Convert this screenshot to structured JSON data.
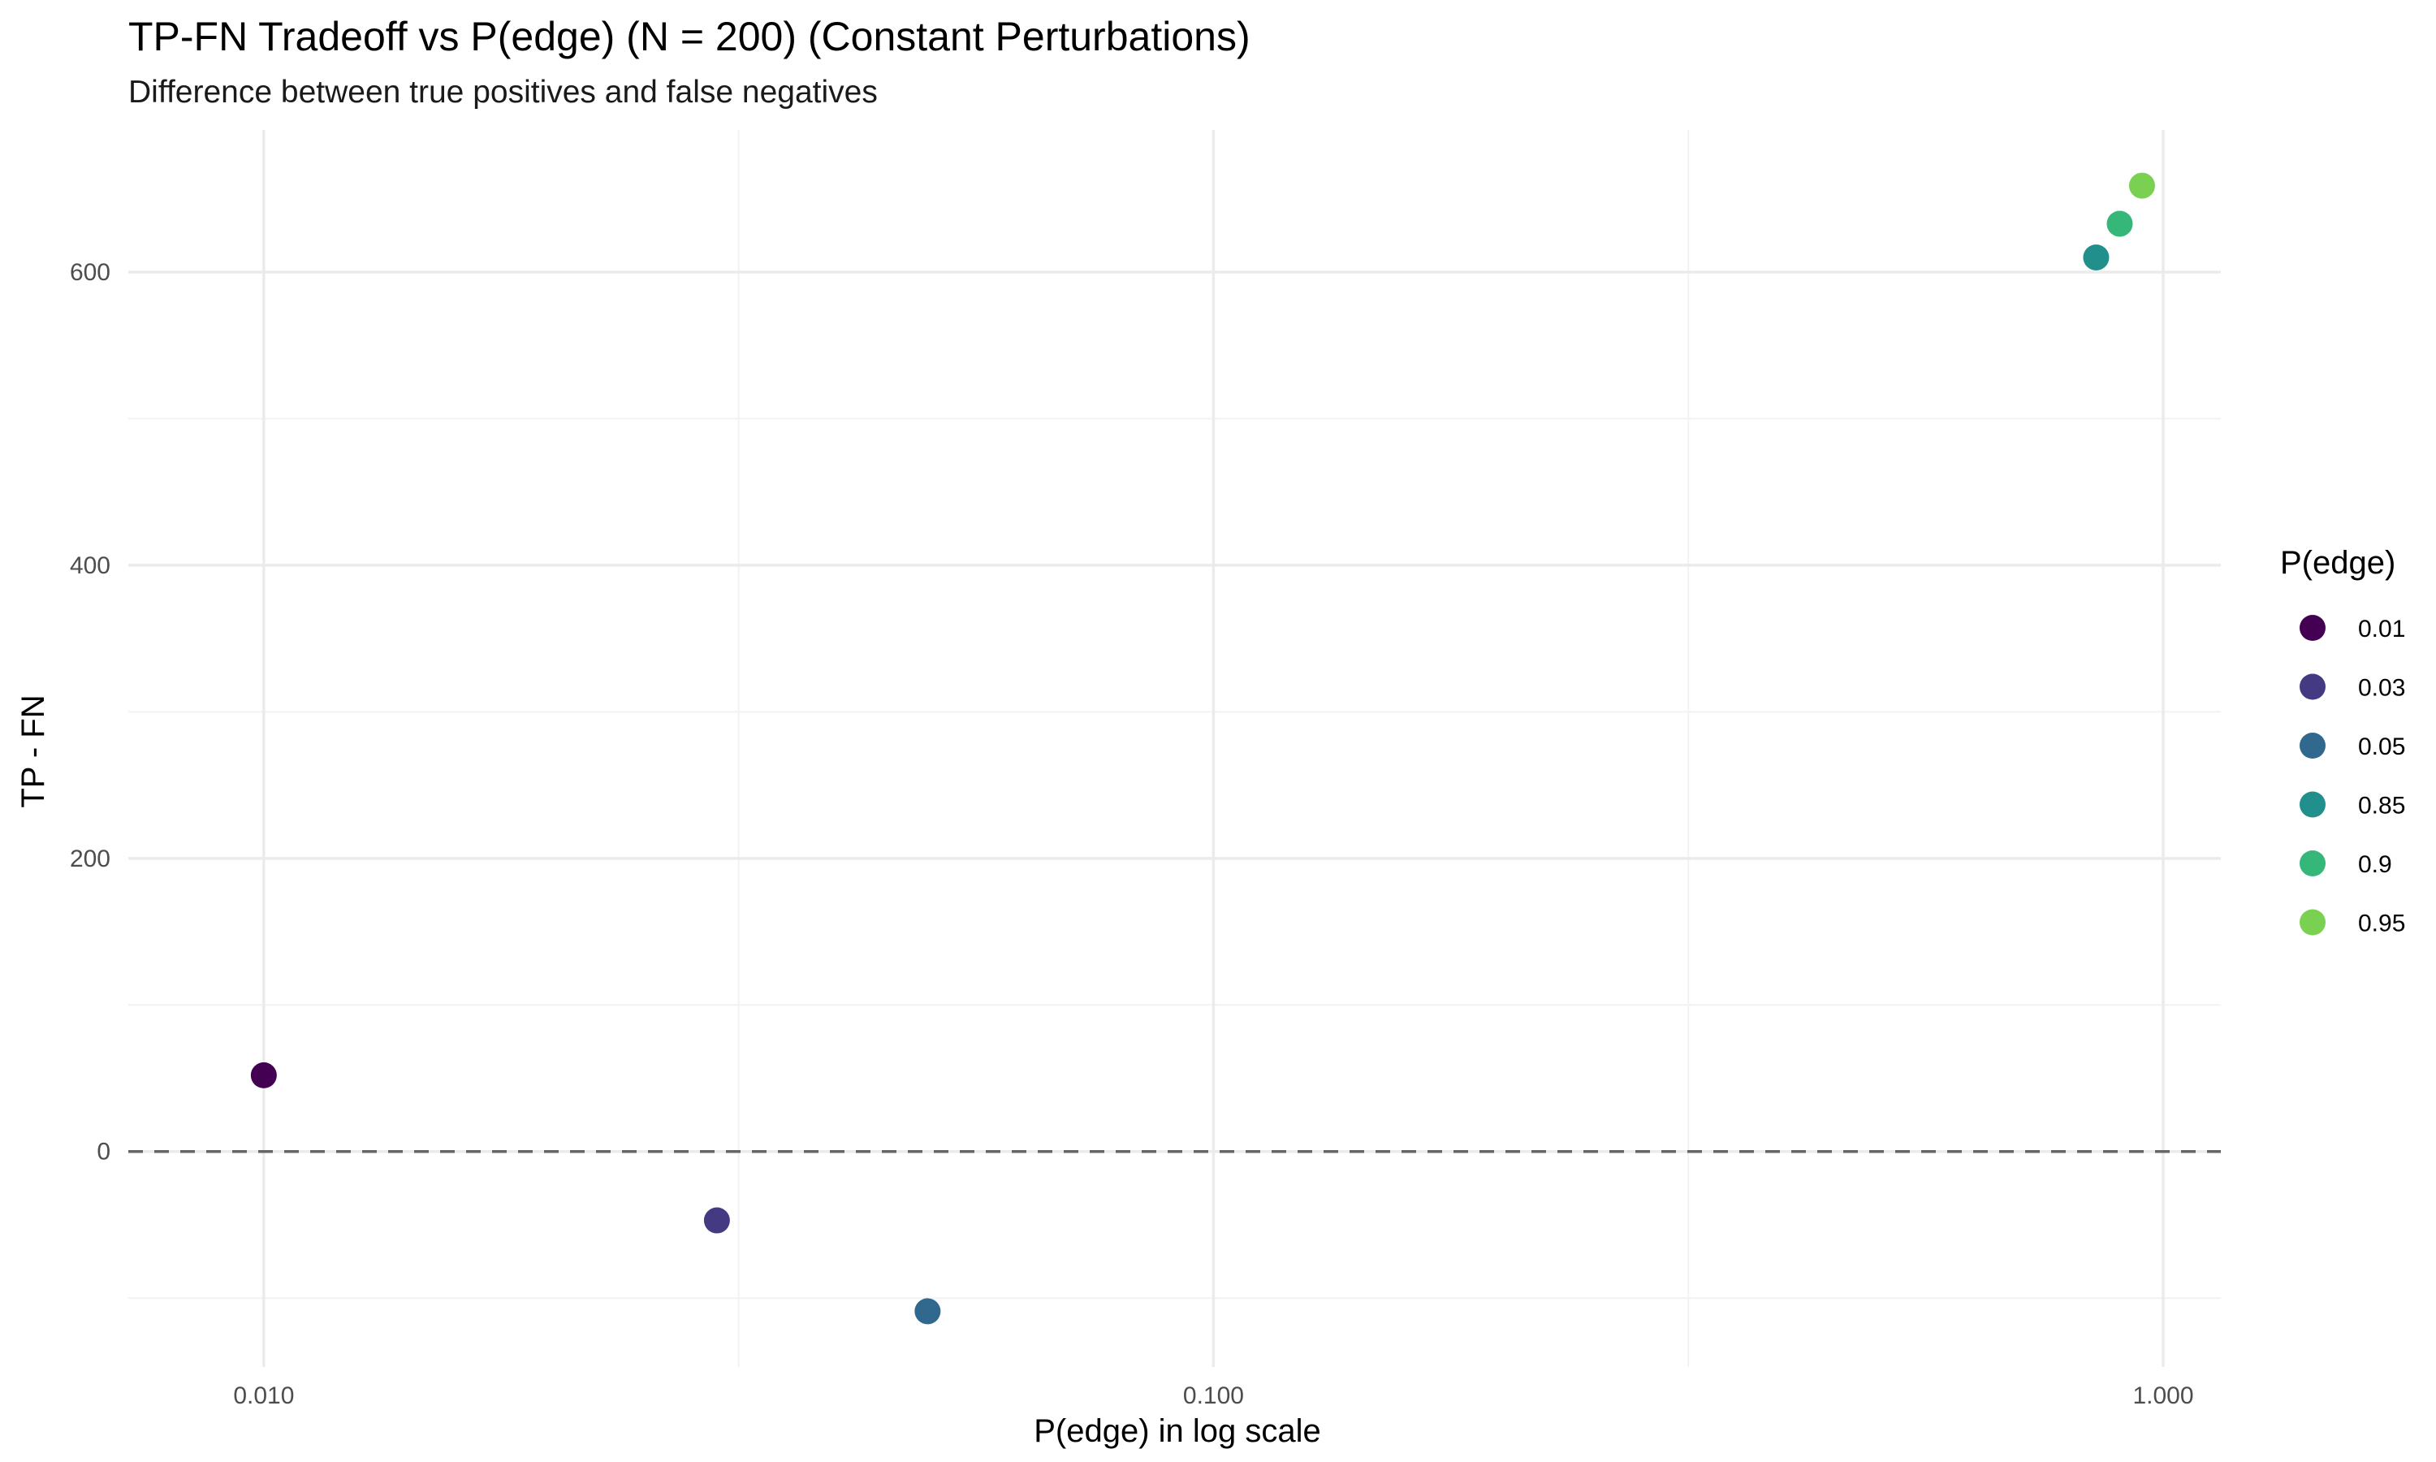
{
  "chart_data": {
    "type": "scatter",
    "title": "TP-FN Tradeoff vs P(edge) (N = 200) (Constant Perturbations)",
    "subtitle": "Difference between true positives and false negatives",
    "xlabel": "P(edge) in log scale",
    "ylabel": "TP - FN",
    "x_scale": "log10",
    "xlim": [
      0.0072,
      1.15
    ],
    "ylim": [
      -147,
      697
    ],
    "x_ticks": [
      0.01,
      0.1,
      1.0
    ],
    "x_tick_labels": [
      "0.010",
      "0.100",
      "1.000"
    ],
    "y_ticks": [
      0,
      200,
      400,
      600
    ],
    "y_tick_labels": [
      "0",
      "200",
      "400",
      "600"
    ],
    "grid": true,
    "reference_line": {
      "y": 0,
      "style": "dashed",
      "color": "#666666"
    },
    "legend": {
      "title": "P(edge)",
      "position": "right",
      "labels": [
        "0.01",
        "0.03",
        "0.05",
        "0.85",
        "0.9",
        "0.95"
      ]
    },
    "points": [
      {
        "x": 0.01,
        "y": 52,
        "label": "0.01",
        "color": "#440154"
      },
      {
        "x": 0.03,
        "y": -47,
        "label": "0.03",
        "color": "#443A83"
      },
      {
        "x": 0.05,
        "y": -109,
        "label": "0.05",
        "color": "#31688E"
      },
      {
        "x": 0.85,
        "y": 610,
        "label": "0.85",
        "color": "#21908C"
      },
      {
        "x": 0.9,
        "y": 633,
        "label": "0.9",
        "color": "#35B779"
      },
      {
        "x": 0.95,
        "y": 659,
        "label": "0.95",
        "color": "#7AD151"
      }
    ]
  }
}
